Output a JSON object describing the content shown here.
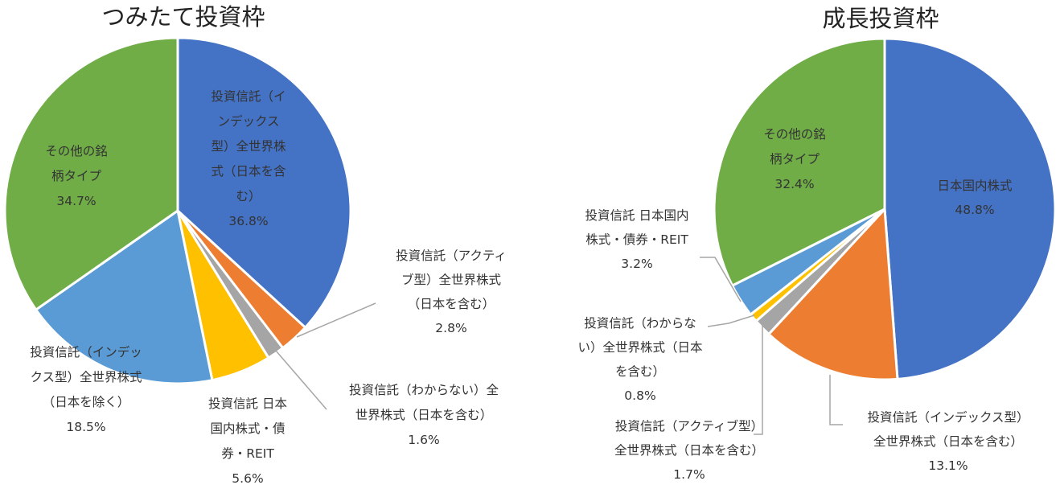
{
  "chart_data": [
    {
      "type": "pie",
      "title": "つみたて投資枠",
      "slices": [
        {
          "label": "投資信託（インデックス型）全世界株式（日本を含む）",
          "value": 36.8,
          "value_label": "36.8%",
          "color": "#4472c4"
        },
        {
          "label": "投資信託（アクティブ型）全世界株式（日本を含む）",
          "value": 2.8,
          "value_label": "2.8%",
          "color": "#ed7d31"
        },
        {
          "label": "投資信託（わからない）全世界株式（日本を含む）",
          "value": 1.6,
          "value_label": "1.6%",
          "color": "#a5a5a5"
        },
        {
          "label": "投資信託 日本国内株式・債券・REIT",
          "value": 5.6,
          "value_label": "5.6%",
          "color": "#ffc000"
        },
        {
          "label": "投資信託（インデックス型）全世界株式（日本を除く）",
          "value": 18.5,
          "value_label": "18.5%",
          "color": "#5b9bd5"
        },
        {
          "label": "その他の銘柄タイプ",
          "value": 34.7,
          "value_label": "34.7%",
          "color": "#70ad47"
        }
      ]
    },
    {
      "type": "pie",
      "title": "成長投資枠",
      "slices": [
        {
          "label": "日本国内株式",
          "value": 48.8,
          "value_label": "48.8%",
          "color": "#4472c4"
        },
        {
          "label": "投資信託（インデックス型）全世界株式（日本を含む）",
          "value": 13.1,
          "value_label": "13.1%",
          "color": "#ed7d31"
        },
        {
          "label": "投資信託（アクティブ型）全世界株式（日本を含む）",
          "value": 1.7,
          "value_label": "1.7%",
          "color": "#a5a5a5"
        },
        {
          "label": "投資信託（わからない）全世界株式（日本を含む）",
          "value": 0.8,
          "value_label": "0.8%",
          "color": "#ffc000"
        },
        {
          "label": "投資信託 日本国内株式・債券・REIT",
          "value": 3.2,
          "value_label": "3.2%",
          "color": "#5b9bd5"
        },
        {
          "label": "その他の銘柄タイプ",
          "value": 32.4,
          "value_label": "32.4%",
          "color": "#70ad47"
        }
      ]
    }
  ]
}
